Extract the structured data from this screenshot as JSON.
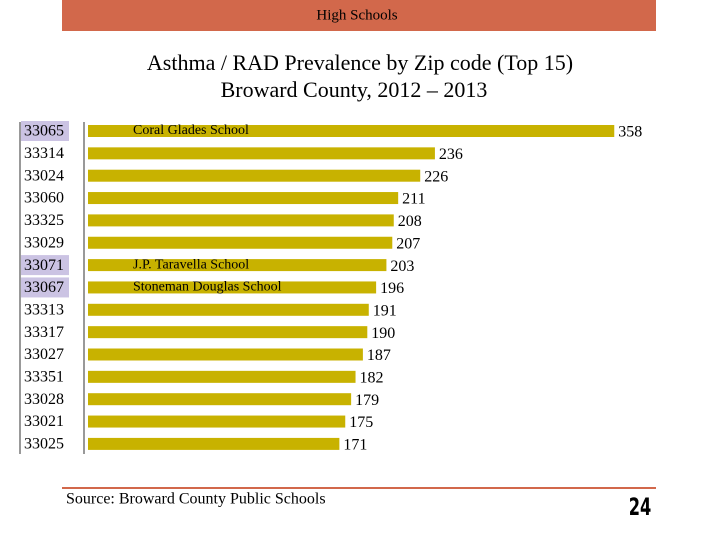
{
  "header": "High Schools",
  "source": "Source: Broward County Public Schools",
  "page_number": "24",
  "chart_data": {
    "type": "hbar",
    "title": "Asthma / RAD Prevalence by Zip code (Top 15)",
    "subtitle": "Broward County, 2012 – 2013",
    "categories": [
      "33065",
      "33314",
      "33024",
      "33060",
      "33325",
      "33029",
      "33071",
      "33067",
      "33313",
      "33317",
      "33027",
      "33351",
      "33028",
      "33021",
      "33025"
    ],
    "values": [
      358,
      236,
      226,
      211,
      208,
      207,
      203,
      196,
      191,
      190,
      187,
      182,
      179,
      175,
      171
    ],
    "color": "#c8b200",
    "highlight": [
      0,
      6,
      7
    ],
    "highlight_color": "#cbc3e3",
    "annotations": [
      {
        "text": "Coral Glades School",
        "category": 0
      },
      {
        "text": "J.P. Taravella School",
        "category": 6
      },
      {
        "text": "Stoneman Douglas School",
        "category": 7
      }
    ]
  }
}
